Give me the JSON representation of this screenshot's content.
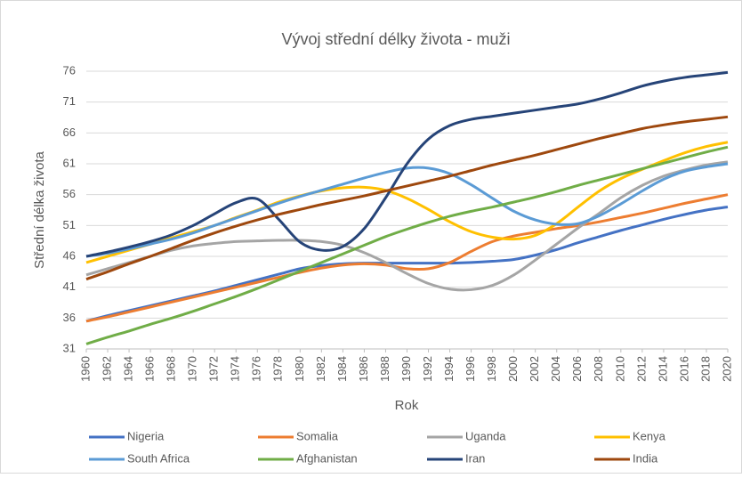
{
  "chart_data": {
    "type": "line",
    "title": "Vývoj střední délky života - muži",
    "x_label": "Rok",
    "y_label": "Střední délka života",
    "x": [
      1960,
      1962,
      1964,
      1966,
      1968,
      1970,
      1972,
      1974,
      1976,
      1978,
      1980,
      1982,
      1984,
      1986,
      1988,
      1990,
      1992,
      1994,
      1996,
      1998,
      2000,
      2002,
      2004,
      2006,
      2008,
      2010,
      2012,
      2014,
      2016,
      2018,
      2020
    ],
    "xlim": [
      1960,
      2020
    ],
    "xticks": [
      1960,
      1962,
      1964,
      1966,
      1968,
      1970,
      1972,
      1974,
      1976,
      1978,
      1980,
      1982,
      1984,
      1986,
      1988,
      1990,
      1992,
      1994,
      1996,
      1998,
      2000,
      2002,
      2004,
      2006,
      2008,
      2010,
      2012,
      2014,
      2016,
      2018,
      2020
    ],
    "ylim": [
      31,
      76
    ],
    "yticks": [
      31,
      36,
      41,
      46,
      51,
      56,
      61,
      66,
      71,
      76
    ],
    "grid": true,
    "legend": "bottom",
    "series": [
      {
        "name": "Nigeria",
        "color": "#4472c4",
        "values": [
          35.5,
          36.4,
          37.2,
          38,
          38.8,
          39.6,
          40.4,
          41.3,
          42.2,
          43.1,
          44,
          44.5,
          44.8,
          44.9,
          44.9,
          44.9,
          44.9,
          44.9,
          45,
          45.2,
          45.5,
          46.2,
          47.1,
          48.2,
          49.2,
          50.2,
          51.1,
          52,
          52.8,
          53.5,
          54
        ]
      },
      {
        "name": "Somalia",
        "color": "#ed7d31",
        "values": [
          35.5,
          36.2,
          37,
          37.8,
          38.6,
          39.4,
          40.2,
          41,
          41.8,
          42.6,
          43.4,
          44.1,
          44.6,
          44.8,
          44.6,
          44,
          44,
          45,
          46.8,
          48.4,
          49.3,
          49.9,
          50.5,
          51,
          51.6,
          52.3,
          53,
          53.8,
          54.6,
          55.3,
          56
        ]
      },
      {
        "name": "Uganda",
        "color": "#a5a5a5",
        "values": [
          43,
          44,
          45,
          46,
          47,
          47.7,
          48.1,
          48.4,
          48.5,
          48.6,
          48.6,
          48.4,
          47.8,
          46.6,
          45,
          43.2,
          41.6,
          40.7,
          40.6,
          41.3,
          43,
          45.4,
          48,
          50.6,
          53,
          55.5,
          57.5,
          59,
          60,
          60.8,
          61.3
        ]
      },
      {
        "name": "Kenya",
        "color": "#ffc000",
        "values": [
          45,
          46,
          47,
          48,
          49,
          50,
          51,
          52.3,
          53.5,
          54.8,
          55.8,
          56.6,
          57.1,
          57.2,
          56.7,
          55.4,
          53.6,
          51.6,
          50,
          49.1,
          48.8,
          49.4,
          51.3,
          54,
          56.6,
          58.6,
          60.1,
          61.5,
          62.8,
          63.8,
          64.5
        ]
      },
      {
        "name": "South Africa",
        "color": "#5b9bd5",
        "values": [
          46,
          46.5,
          47.2,
          48,
          48.8,
          49.8,
          51,
          52.2,
          53.4,
          54.6,
          55.7,
          56.7,
          57.7,
          58.7,
          59.6,
          60.3,
          60.3,
          59.4,
          57.6,
          55.4,
          53.3,
          51.9,
          51.2,
          51.3,
          52.6,
          54.5,
          56.6,
          58.5,
          59.8,
          60.5,
          61
        ]
      },
      {
        "name": "Afghanistan",
        "color": "#70ad47",
        "values": [
          31.8,
          32.9,
          33.9,
          35,
          36,
          37.1,
          38.3,
          39.5,
          40.8,
          42.2,
          43.6,
          45,
          46.4,
          47.8,
          49.2,
          50.4,
          51.5,
          52.5,
          53.3,
          54,
          54.8,
          55.6,
          56.5,
          57.5,
          58.4,
          59.3,
          60.2,
          61.1,
          62,
          62.9,
          63.7
        ]
      },
      {
        "name": "Iran",
        "color": "#264478",
        "values": [
          46,
          46.7,
          47.5,
          48.4,
          49.5,
          51,
          52.9,
          54.7,
          55.3,
          52,
          48.3,
          47,
          47.6,
          50.5,
          55.5,
          61,
          65,
          67.2,
          68.2,
          68.7,
          69.2,
          69.7,
          70.2,
          70.7,
          71.5,
          72.5,
          73.6,
          74.4,
          75,
          75.4,
          75.8
        ]
      },
      {
        "name": "India",
        "color": "#9e480e",
        "values": [
          42.3,
          43.5,
          44.8,
          46,
          47.3,
          48.6,
          49.8,
          50.9,
          51.9,
          52.8,
          53.6,
          54.4,
          55.1,
          55.8,
          56.6,
          57.4,
          58.2,
          59,
          59.9,
          60.8,
          61.6,
          62.4,
          63.3,
          64.2,
          65.1,
          65.9,
          66.7,
          67.3,
          67.8,
          68.2,
          68.6
        ]
      }
    ]
  }
}
